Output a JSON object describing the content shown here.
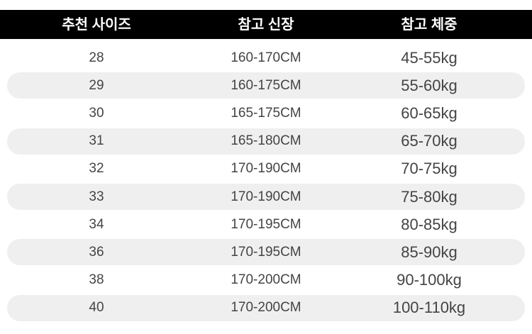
{
  "header": [
    "추천 사이즈",
    "참고 신장",
    "참고 체중"
  ],
  "rows": [
    [
      "28",
      "160-170CM",
      "45-55kg"
    ],
    [
      "29",
      "160-175CM",
      "55-60kg"
    ],
    [
      "30",
      "165-175CM",
      "60-65kg"
    ],
    [
      "31",
      "165-180CM",
      "65-70kg"
    ],
    [
      "32",
      "170-190CM",
      "70-75kg"
    ],
    [
      "33",
      "170-190CM",
      "75-80kg"
    ],
    [
      "34",
      "170-195CM",
      "80-85kg"
    ],
    [
      "36",
      "170-195CM",
      "85-90kg"
    ],
    [
      "38",
      "170-200CM",
      "90-100kg"
    ],
    [
      "40",
      "170-200CM",
      "100-110kg"
    ]
  ]
}
